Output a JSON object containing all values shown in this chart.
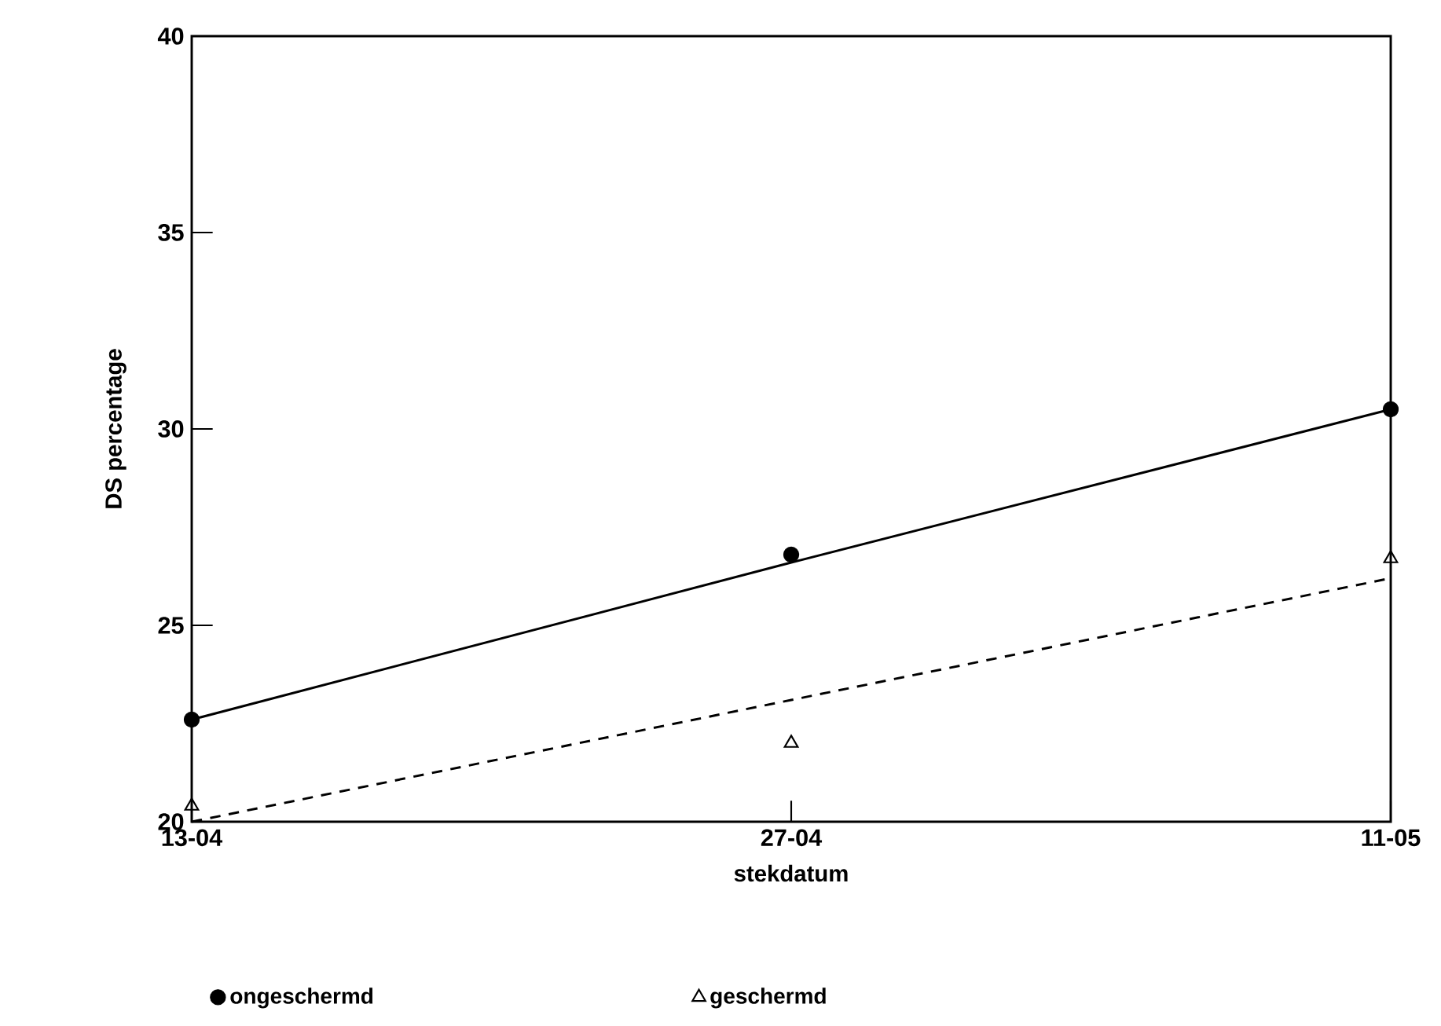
{
  "chart_data": {
    "type": "scatter",
    "xlabel": "stekdatum",
    "ylabel": "DS percentage",
    "categories": [
      "13-04",
      "27-04",
      "11-05"
    ],
    "ylim": [
      20,
      40
    ],
    "yticks": [
      20,
      25,
      30,
      35,
      40
    ],
    "legend": "bottom",
    "grid": false,
    "series": [
      {
        "name": "ongeschermd",
        "marker": "circle",
        "color": "#000000",
        "values": [
          22.6,
          26.8,
          30.5
        ]
      },
      {
        "name": "geschermd",
        "marker": "triangle",
        "color": "#000000",
        "values": [
          20.4,
          22.0,
          26.7
        ]
      },
      {
        "type": "line",
        "marker": "none",
        "line_style": "solid",
        "color": "#000000",
        "values": [
          22.6,
          26.6,
          30.5
        ]
      },
      {
        "type": "line",
        "marker": "none",
        "line_style": "dashed",
        "color": "#000000",
        "values": [
          20.0,
          23.1,
          26.2
        ]
      }
    ]
  }
}
